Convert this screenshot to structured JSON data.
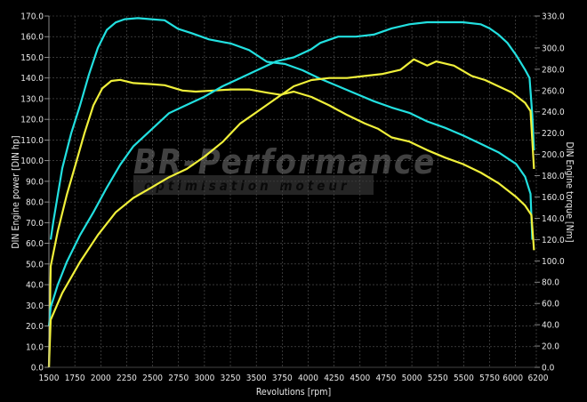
{
  "chart_data": {
    "type": "line",
    "xlabel": "Revolutions [rpm]",
    "ylabel_left": "DIN Engine power [DIN hp]",
    "ylabel_right": "DIN Engine torque [Nm]",
    "xlim": [
      1500,
      6200
    ],
    "ylim_left": [
      0,
      170
    ],
    "ylim_right": [
      0,
      330
    ],
    "x_ticks": [
      1500,
      1750,
      2000,
      2250,
      2500,
      2750,
      3000,
      3250,
      3500,
      3750,
      4000,
      4250,
      4500,
      4750,
      5000,
      5250,
      5500,
      5750,
      6000,
      6200
    ],
    "y_left_ticks": [
      "0.0",
      "10.0",
      "20.0",
      "30.0",
      "40.0",
      "50.0",
      "60.0",
      "70.0",
      "80.0",
      "90.0",
      "100.0",
      "110.0",
      "120.0",
      "130.0",
      "140.0",
      "150.0",
      "160.0",
      "170.0"
    ],
    "y_right_ticks": [
      "0.0",
      "20.0",
      "40.0",
      "60.0",
      "80.0",
      "100.0",
      "120.0",
      "140.0",
      "160.0",
      "180.0",
      "200.0",
      "220.0",
      "240.0",
      "260.0",
      "280.0",
      "300.0",
      "330.0"
    ],
    "grid": true,
    "background": "#000000",
    "series": [
      {
        "axis": "right",
        "color": "#22e0e0",
        "points": [
          [
            1517,
            120
          ],
          [
            1543,
            137
          ],
          [
            1629,
            187
          ],
          [
            1715,
            220
          ],
          [
            1800,
            246
          ],
          [
            1886,
            275
          ],
          [
            1972,
            300
          ],
          [
            2058,
            317
          ],
          [
            2144,
            324
          ],
          [
            2230,
            327
          ],
          [
            2358,
            328
          ],
          [
            2487,
            327
          ],
          [
            2616,
            326
          ],
          [
            2745,
            318
          ],
          [
            2873,
            314
          ],
          [
            3045,
            308
          ],
          [
            3260,
            304
          ],
          [
            3431,
            298
          ],
          [
            3603,
            287
          ],
          [
            3775,
            285
          ],
          [
            3946,
            279
          ],
          [
            4118,
            271
          ],
          [
            4290,
            264
          ],
          [
            4461,
            257
          ],
          [
            4633,
            250
          ],
          [
            4805,
            244
          ],
          [
            4976,
            239
          ],
          [
            5148,
            231
          ],
          [
            5320,
            225
          ],
          [
            5491,
            218
          ],
          [
            5663,
            210
          ],
          [
            5835,
            202
          ],
          [
            6006,
            191
          ],
          [
            6092,
            179
          ],
          [
            6144,
            163
          ],
          [
            6161,
            120
          ]
        ]
      },
      {
        "axis": "right",
        "color": "#f0f03a",
        "points": [
          [
            1500,
            0
          ],
          [
            1517,
            95
          ],
          [
            1586,
            128
          ],
          [
            1672,
            162
          ],
          [
            1758,
            191
          ],
          [
            1843,
            220
          ],
          [
            1929,
            246
          ],
          [
            2015,
            262
          ],
          [
            2101,
            269
          ],
          [
            2187,
            270
          ],
          [
            2315,
            267
          ],
          [
            2487,
            266
          ],
          [
            2616,
            265
          ],
          [
            2788,
            260
          ],
          [
            2916,
            259
          ],
          [
            3088,
            260
          ],
          [
            3260,
            261
          ],
          [
            3431,
            261
          ],
          [
            3603,
            258
          ],
          [
            3732,
            256
          ],
          [
            3861,
            259
          ],
          [
            4032,
            254
          ],
          [
            4204,
            246
          ],
          [
            4376,
            237
          ],
          [
            4547,
            229
          ],
          [
            4676,
            224
          ],
          [
            4805,
            216
          ],
          [
            4976,
            212
          ],
          [
            5148,
            204
          ],
          [
            5320,
            197
          ],
          [
            5491,
            191
          ],
          [
            5663,
            183
          ],
          [
            5835,
            173
          ],
          [
            6006,
            160
          ],
          [
            6092,
            152
          ],
          [
            6153,
            143
          ],
          [
            6178,
            110
          ]
        ]
      },
      {
        "axis": "left",
        "color": "#22e0e0",
        "points": [
          [
            1500,
            20
          ],
          [
            1517,
            29
          ],
          [
            1586,
            40
          ],
          [
            1672,
            51
          ],
          [
            1800,
            64
          ],
          [
            1929,
            75
          ],
          [
            2058,
            87
          ],
          [
            2187,
            98
          ],
          [
            2315,
            107
          ],
          [
            2487,
            115
          ],
          [
            2659,
            123
          ],
          [
            2830,
            127
          ],
          [
            3002,
            131
          ],
          [
            3174,
            136
          ],
          [
            3346,
            140
          ],
          [
            3517,
            144
          ],
          [
            3689,
            148
          ],
          [
            3861,
            150
          ],
          [
            4032,
            154
          ],
          [
            4118,
            157
          ],
          [
            4290,
            160
          ],
          [
            4461,
            160
          ],
          [
            4633,
            161
          ],
          [
            4805,
            164
          ],
          [
            4976,
            166
          ],
          [
            5148,
            167
          ],
          [
            5320,
            167
          ],
          [
            5491,
            167
          ],
          [
            5663,
            166
          ],
          [
            5749,
            164
          ],
          [
            5835,
            161
          ],
          [
            5921,
            157
          ],
          [
            6006,
            151
          ],
          [
            6092,
            144
          ],
          [
            6135,
            140
          ],
          [
            6161,
            122
          ],
          [
            6178,
            105
          ]
        ]
      },
      {
        "axis": "left",
        "color": "#f0f03a",
        "points": [
          [
            1500,
            0
          ],
          [
            1517,
            23
          ],
          [
            1629,
            36
          ],
          [
            1800,
            51
          ],
          [
            1972,
            64
          ],
          [
            2144,
            75
          ],
          [
            2315,
            82
          ],
          [
            2487,
            87
          ],
          [
            2659,
            92
          ],
          [
            2830,
            96
          ],
          [
            3002,
            102
          ],
          [
            3174,
            109
          ],
          [
            3346,
            118
          ],
          [
            3517,
            124
          ],
          [
            3689,
            130
          ],
          [
            3861,
            136
          ],
          [
            4032,
            139
          ],
          [
            4204,
            140
          ],
          [
            4376,
            140
          ],
          [
            4547,
            141
          ],
          [
            4719,
            142
          ],
          [
            4891,
            144
          ],
          [
            5019,
            149
          ],
          [
            5148,
            146
          ],
          [
            5234,
            148
          ],
          [
            5406,
            146
          ],
          [
            5577,
            141
          ],
          [
            5706,
            139
          ],
          [
            5835,
            136
          ],
          [
            5964,
            133
          ],
          [
            6092,
            128
          ],
          [
            6144,
            124
          ],
          [
            6178,
            96
          ]
        ]
      }
    ]
  },
  "watermark": {
    "line1": "BR-Performance",
    "line2": "optimisation moteur"
  }
}
